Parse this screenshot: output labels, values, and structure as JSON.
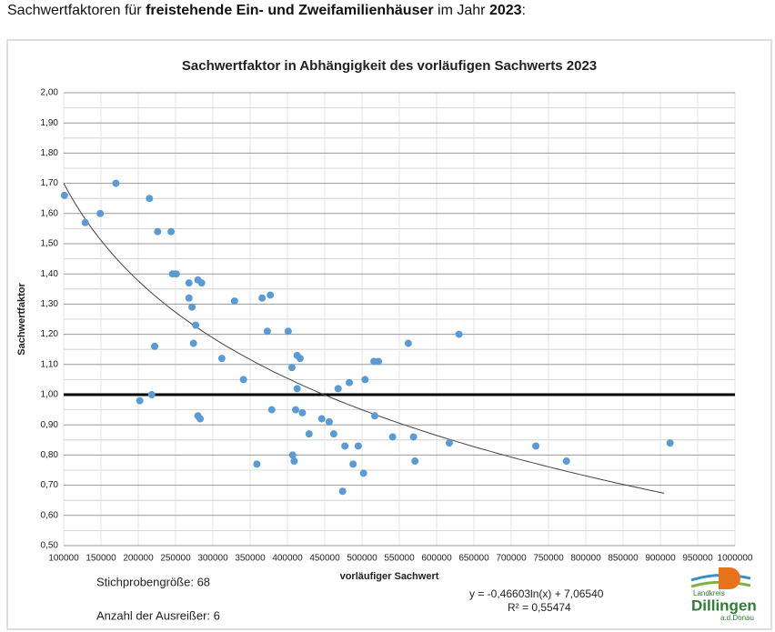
{
  "heading": [
    {
      "text": "Sachwertfaktoren für ",
      "bold": false
    },
    {
      "text": "freistehende Ein- und Zweifamilienhäuser",
      "bold": true
    },
    {
      "text": " im Jahr ",
      "bold": false
    },
    {
      "text": "2023",
      "bold": true
    },
    {
      "text": ":",
      "bold": false
    }
  ],
  "chart_data": {
    "type": "scatter",
    "title": "Sachwertfaktor in Abhängigkeit des vorläufigen Sachwerts 2023",
    "x_label": "vorläufiger Sachwert",
    "y_label": "Sachwertfaktor",
    "color": "#5b9bd5",
    "grid": true,
    "minor_grid": true,
    "x": [
      101000,
      129000,
      149000,
      170000,
      215000,
      226000,
      244000,
      246000,
      251000,
      268000,
      280000,
      285000,
      268000,
      272000,
      277000,
      274000,
      222000,
      202000,
      218000,
      280000,
      283000,
      312000,
      329000,
      341000,
      366000,
      377000,
      373000,
      379000,
      359000,
      401000,
      406000,
      413000,
      417000,
      413000,
      411000,
      420000,
      407000,
      409000,
      429000,
      446000,
      456000,
      462000,
      468000,
      483000,
      504000,
      477000,
      488000,
      495000,
      502000,
      474000,
      516000,
      522000,
      517000,
      541000,
      562000,
      569000,
      571000,
      630000,
      617000,
      733000,
      774000,
      913000
    ],
    "values": [
      1.66,
      1.57,
      1.6,
      1.7,
      1.65,
      1.54,
      1.54,
      1.4,
      1.4,
      1.37,
      1.38,
      1.37,
      1.32,
      1.29,
      1.23,
      1.17,
      1.16,
      0.98,
      1.0,
      0.93,
      0.92,
      1.12,
      1.31,
      1.05,
      1.32,
      1.33,
      1.21,
      0.95,
      0.77,
      1.21,
      1.09,
      1.13,
      1.12,
      1.02,
      0.95,
      0.94,
      0.8,
      0.78,
      0.87,
      0.92,
      0.91,
      0.87,
      1.02,
      1.04,
      1.05,
      0.83,
      0.77,
      0.83,
      0.74,
      0.68,
      1.11,
      1.11,
      0.93,
      0.86,
      1.17,
      0.86,
      0.78,
      1.2,
      0.84,
      0.83,
      0.78,
      0.84
    ],
    "xlim": [
      100000,
      1000000
    ],
    "xticks": [
      100000,
      150000,
      200000,
      250000,
      300000,
      350000,
      400000,
      450000,
      500000,
      550000,
      600000,
      650000,
      700000,
      750000,
      800000,
      850000,
      900000,
      950000,
      1000000
    ],
    "ylim": [
      0.5,
      2.0
    ],
    "yticks": [
      {
        "value": 0.5,
        "label": "0,50"
      },
      {
        "value": 0.6,
        "label": "0,60"
      },
      {
        "value": 0.7,
        "label": "0,70"
      },
      {
        "value": 0.8,
        "label": "0,80"
      },
      {
        "value": 0.9,
        "label": "0,90"
      },
      {
        "value": 1.0,
        "label": "1,00"
      },
      {
        "value": 1.1,
        "label": "1,10"
      },
      {
        "value": 1.2,
        "label": "1,20"
      },
      {
        "value": 1.3,
        "label": "1,30"
      },
      {
        "value": 1.4,
        "label": "1,40"
      },
      {
        "value": 1.5,
        "label": "1,50"
      },
      {
        "value": 1.6,
        "label": "1,60"
      },
      {
        "value": 1.7,
        "label": "1,70"
      },
      {
        "value": 1.8,
        "label": "1,80"
      },
      {
        "value": 1.9,
        "label": "1,90"
      },
      {
        "value": 2.0,
        "label": "2,00"
      }
    ],
    "reference_line": 1.0,
    "trendline": {
      "a": -0.46603,
      "b": 7.0654,
      "x_range": [
        100000,
        905000
      ],
      "equation": "y = -0,46603ln(x) + 7,06540",
      "r2": "R² = 0,55474"
    },
    "sample_size": "Stichprobengröße: 68",
    "outliers": "Anzahl der Ausreißer: 6",
    "logo": [
      "Landkreis",
      "Dillingen",
      "a.d.Donau"
    ]
  }
}
